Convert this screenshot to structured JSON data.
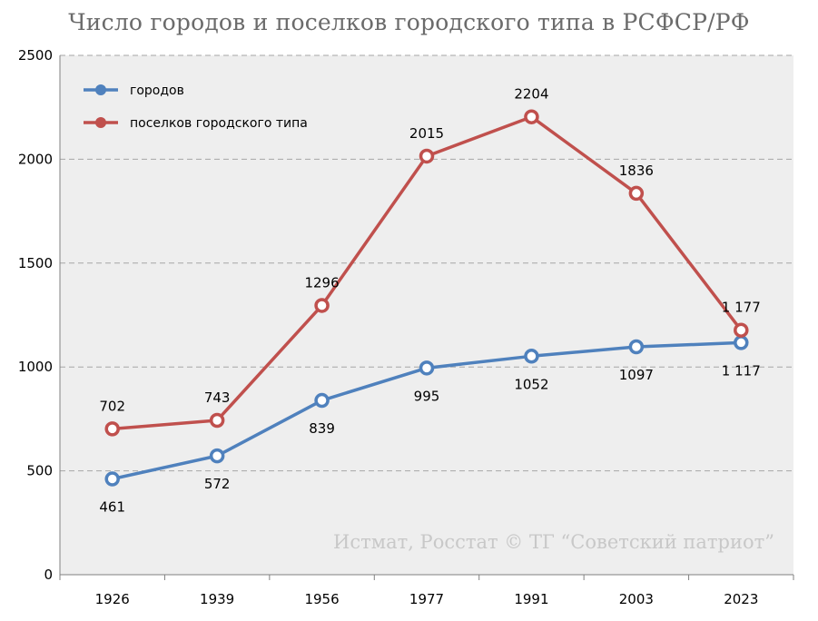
{
  "chart_data": {
    "type": "line",
    "title": "Число городов и поселков городского типа в РСФСР/РФ",
    "categories": [
      "1926",
      "1939",
      "1956",
      "1977",
      "1991",
      "2003",
      "2023"
    ],
    "series": [
      {
        "name": "городов",
        "color": "#4f81bd",
        "values": [
          461,
          572,
          839,
          995,
          1052,
          1097,
          1117
        ],
        "labels": [
          "461",
          "572",
          "839",
          "995",
          "1052",
          "1097",
          "1 117"
        ],
        "label_position": [
          "below",
          "below",
          "below",
          "below",
          "below",
          "below",
          "below"
        ]
      },
      {
        "name": "поселков городского типа",
        "color": "#c0504d",
        "values": [
          702,
          743,
          1296,
          2015,
          2204,
          1836,
          1177
        ],
        "labels": [
          "702",
          "743",
          "1296",
          "2015",
          "2204",
          "1836",
          "1 177"
        ],
        "label_position": [
          "above",
          "above",
          "above",
          "above",
          "above",
          "above",
          "above"
        ]
      }
    ],
    "ylim": [
      0,
      2500
    ],
    "yticks": [
      "0",
      "500",
      "1000",
      "1500",
      "2000",
      "2500"
    ],
    "grid": "horizontal-dashed",
    "legend_position": "top-left",
    "plot_background": "#eeeeee",
    "watermark": "Истмат, Росстат © ТГ “Советский патриот”"
  }
}
